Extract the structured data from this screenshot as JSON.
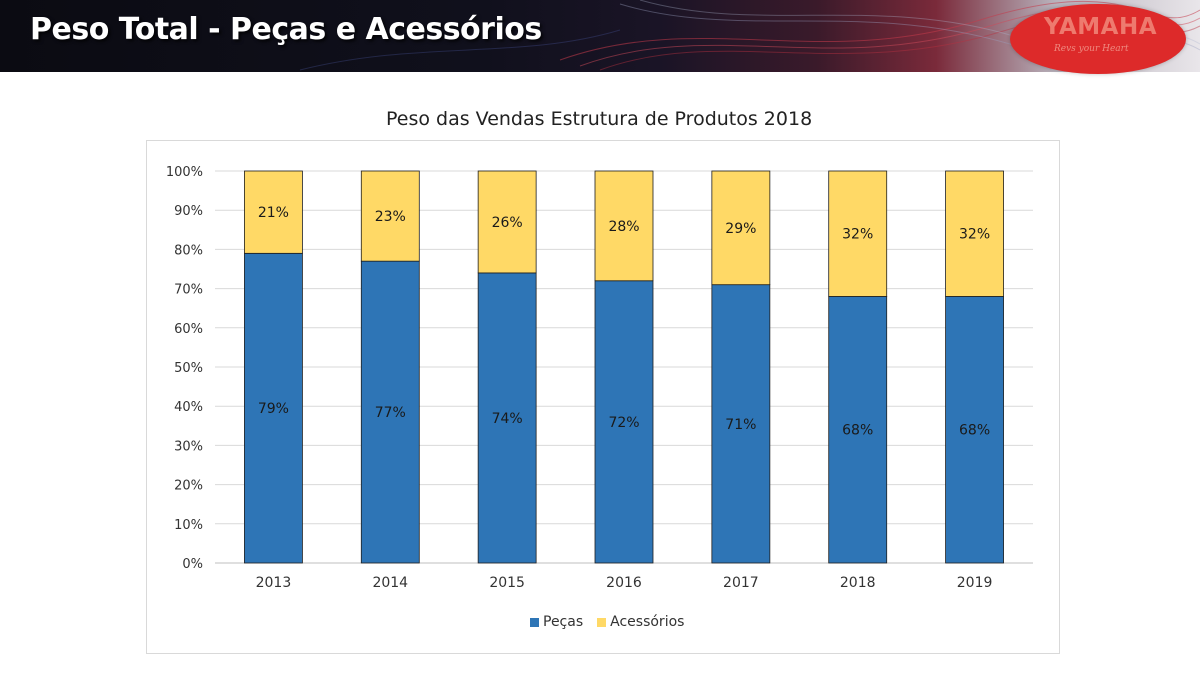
{
  "slide": {
    "title": "Peso Total - Peças e Acessórios"
  },
  "logo": {
    "brand": "YAMAHA",
    "tagline": "Revs your Heart"
  },
  "colors": {
    "pecas": "#2e75b6",
    "acessorios": "#ffd966",
    "logo_red": "#dd2a2a"
  },
  "chart_data": {
    "type": "bar",
    "stacked": true,
    "title": "Peso das Vendas Estrutura de Produtos 2018",
    "categories": [
      "2013",
      "2014",
      "2015",
      "2016",
      "2017",
      "2018",
      "2019"
    ],
    "series": [
      {
        "name": "Peças",
        "values": [
          79,
          77,
          74,
          72,
          71,
          68,
          68
        ],
        "labels": [
          "79%",
          "77%",
          "74%",
          "72%",
          "71%",
          "68%",
          "68%"
        ]
      },
      {
        "name": "Acessórios",
        "values": [
          21,
          23,
          26,
          28,
          29,
          32,
          32
        ],
        "labels": [
          "21%",
          "23%",
          "26%",
          "28%",
          "29%",
          "32%",
          "32%"
        ]
      }
    ],
    "y_ticks": [
      "0%",
      "10%",
      "20%",
      "30%",
      "40%",
      "50%",
      "60%",
      "70%",
      "80%",
      "90%",
      "100%"
    ],
    "ylim": [
      0,
      100
    ],
    "xlabel": "",
    "ylabel": "",
    "grid": true,
    "legend_position": "bottom"
  }
}
